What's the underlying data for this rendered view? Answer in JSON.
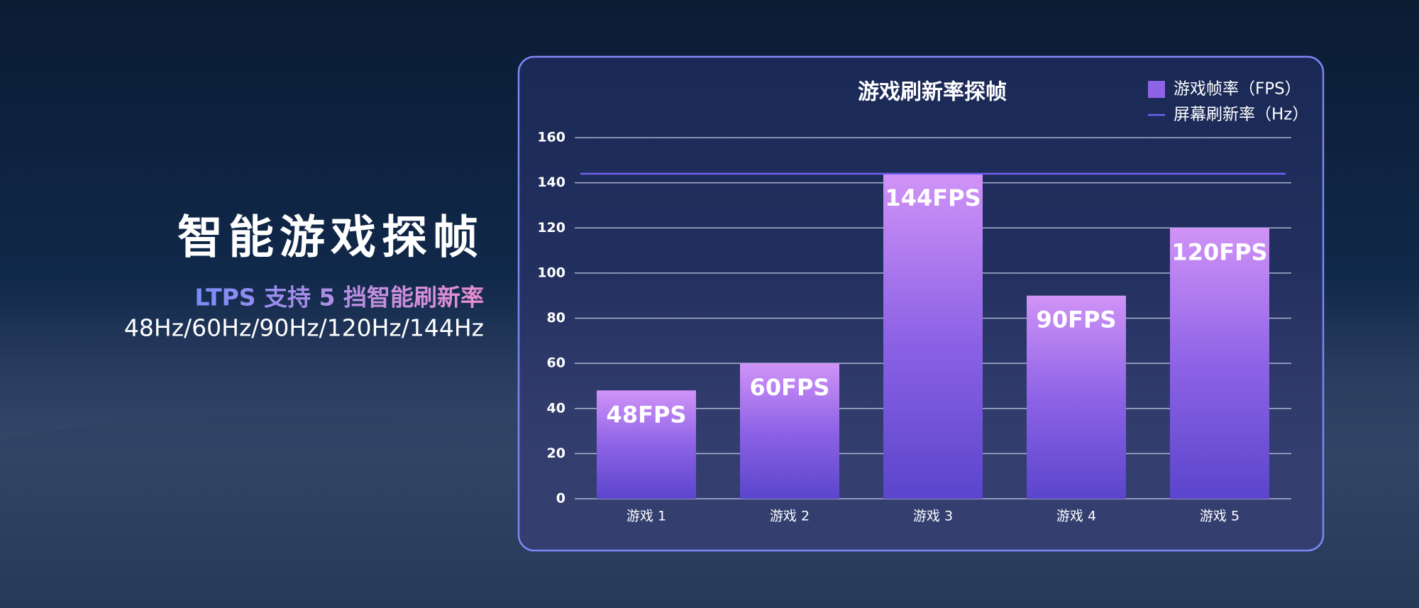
{
  "heading": "智能游戏探帧",
  "subheading": "LTPS 支持 5 挡智能刷新率",
  "rates": "48Hz/60Hz/90Hz/120Hz/144Hz",
  "chart_data": {
    "type": "bar",
    "title": "游戏刷新率探帧",
    "categories": [
      "游戏 1",
      "游戏 2",
      "游戏 3",
      "游戏 4",
      "游戏 5"
    ],
    "series": [
      {
        "name": "游戏帧率（FPS）",
        "color": "#8e63e6",
        "values": [
          48,
          60,
          144,
          90,
          120
        ],
        "value_labels": [
          "48FPS",
          "60FPS",
          "144FPS",
          "90FPS",
          "120FPS"
        ]
      },
      {
        "name": "屏幕刷新率（Hz）",
        "type": "line",
        "color": "#6f62f0",
        "values": [
          144,
          144,
          144,
          144,
          144
        ]
      }
    ],
    "ylim": [
      0,
      160
    ],
    "yticks": [
      0,
      20,
      40,
      60,
      80,
      100,
      120,
      140,
      160
    ],
    "grid": true,
    "legend": "top-right"
  }
}
